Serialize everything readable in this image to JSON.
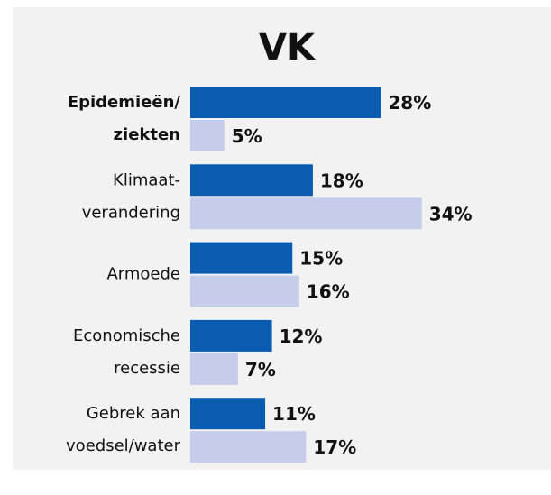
{
  "chart_data": {
    "type": "hbar",
    "title": "VK",
    "categories": [
      "Epidemieën/\nziekten",
      "Klimaat-\nverandering",
      "Armoede",
      "Economische\nrecessie",
      "Gebrek aan\nvoedsel/water"
    ],
    "series": [
      {
        "color": "#0a5cb0",
        "values": [
          28,
          18,
          15,
          12,
          11
        ],
        "value_labels": [
          "28%",
          "18%",
          "15%",
          "12%",
          "11%"
        ]
      },
      {
        "color": "#c5cdeb",
        "values": [
          5,
          34,
          16,
          7,
          17
        ],
        "value_labels": [
          "5%",
          "34%",
          "16%",
          "7%",
          "17%"
        ]
      }
    ],
    "xlim": [
      0,
      40
    ],
    "highlight": [
      0
    ]
  }
}
